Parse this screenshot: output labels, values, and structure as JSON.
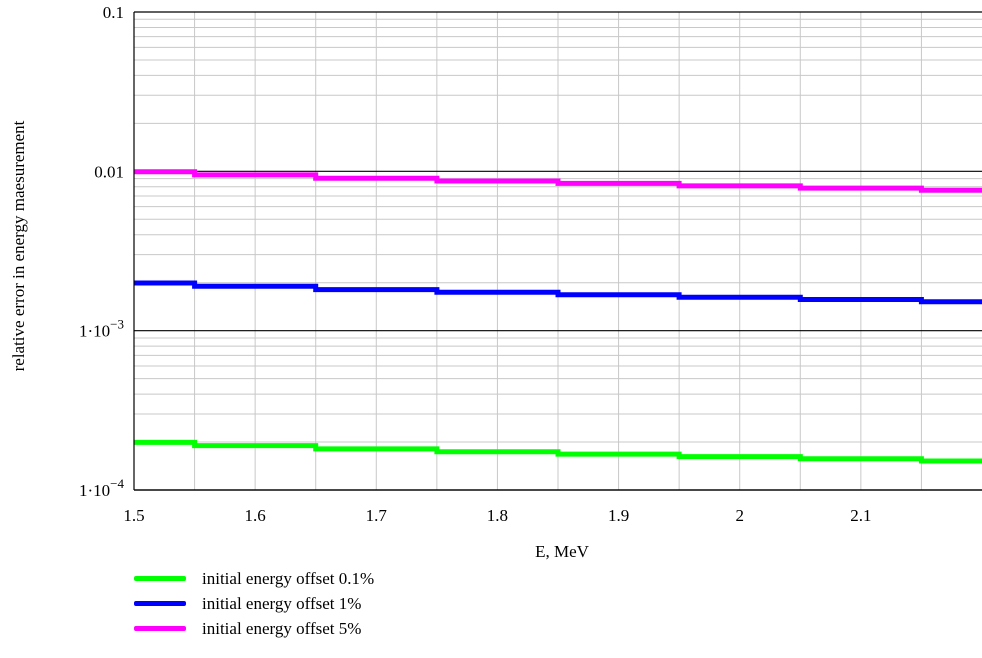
{
  "chart_data": {
    "type": "line",
    "title": "",
    "xlabel": "E, MeV",
    "ylabel": "relative error in energy maesurement",
    "xlim": [
      1.5,
      2.2
    ],
    "ylim": [
      0.0001,
      0.1
    ],
    "yscale": "log",
    "grid": true,
    "legend_position": "bottom-left",
    "x_ticks": [
      1.5,
      1.6,
      1.7,
      1.8,
      1.9,
      2,
      2.1
    ],
    "x_tick_labels": [
      "1.5",
      "1.6",
      "1.7",
      "1.8",
      "1.9",
      "2",
      "2.1"
    ],
    "y_ticks": [
      0.1,
      0.01,
      0.001,
      0.0001
    ],
    "y_tick_labels": [
      {
        "base": "0.1",
        "exp": ""
      },
      {
        "base": "0.01",
        "exp": ""
      },
      {
        "base": "1·10",
        "exp": "−3"
      },
      {
        "base": "1·10",
        "exp": "−4"
      }
    ],
    "series": [
      {
        "name": "initial energy offset 0.1%",
        "color": "#00ff00",
        "x": [
          1.5,
          1.6,
          1.7,
          1.8,
          1.9,
          2.0,
          2.1,
          2.2
        ],
        "y": [
          0.000199,
          0.00019,
          0.000181,
          0.000174,
          0.000168,
          0.000162,
          0.000157,
          0.000152
        ]
      },
      {
        "name": "initial energy offset 1%",
        "color": "#0000ff",
        "x": [
          1.5,
          1.6,
          1.7,
          1.8,
          1.9,
          2.0,
          2.1,
          2.2
        ],
        "y": [
          0.00199,
          0.0019,
          0.00181,
          0.00174,
          0.00168,
          0.00162,
          0.00157,
          0.00152
        ]
      },
      {
        "name": "initial energy offset 5%",
        "color": "#ff00ff",
        "x": [
          1.5,
          1.6,
          1.7,
          1.8,
          1.9,
          2.0,
          2.1,
          2.2
        ],
        "y": [
          0.00995,
          0.0095,
          0.00905,
          0.0087,
          0.0084,
          0.0081,
          0.00785,
          0.0076
        ]
      }
    ]
  }
}
